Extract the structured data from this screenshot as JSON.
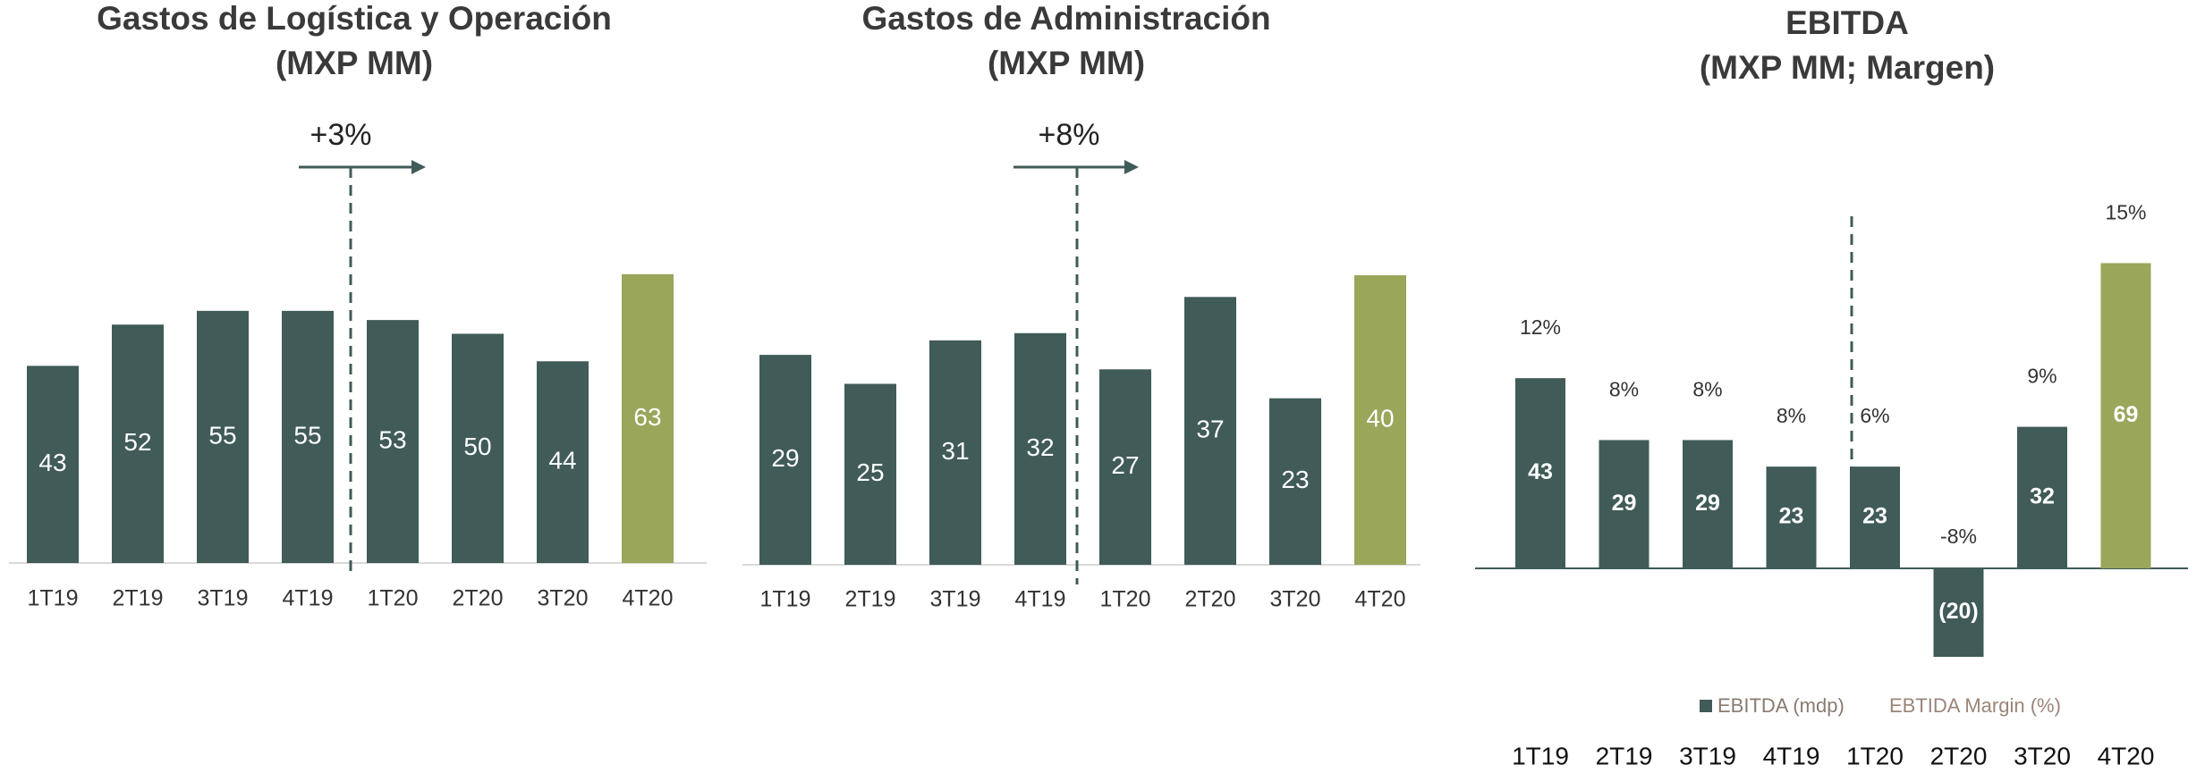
{
  "chart_data": [
    {
      "type": "bar",
      "title": "Gastos de Logística y Operación",
      "subtitle": "(MXP MM)",
      "annotation": "+3%",
      "categories": [
        "1T19",
        "2T19",
        "3T19",
        "4T19",
        "1T20",
        "2T20",
        "3T20",
        "4T20"
      ],
      "values": [
        43,
        52,
        55,
        55,
        53,
        50,
        44,
        63
      ],
      "colors": [
        "#405b58",
        "#405b58",
        "#405b58",
        "#405b58",
        "#405b58",
        "#405b58",
        "#405b58",
        "#9aa65a"
      ]
    },
    {
      "type": "bar",
      "title": "Gastos de Administración",
      "subtitle": "(MXP MM)",
      "annotation": "+8%",
      "categories": [
        "1T19",
        "2T19",
        "3T19",
        "4T19",
        "1T20",
        "2T20",
        "3T20",
        "4T20"
      ],
      "values": [
        29,
        25,
        31,
        32,
        27,
        37,
        23,
        40
      ],
      "colors": [
        "#405b58",
        "#405b58",
        "#405b58",
        "#405b58",
        "#405b58",
        "#405b58",
        "#405b58",
        "#9aa65a"
      ]
    },
    {
      "type": "bar",
      "title": "EBITDA",
      "subtitle": "(MXP MM; Margen)",
      "categories": [
        "1T19",
        "2T19",
        "3T19",
        "4T19",
        "1T20",
        "2T20",
        "3T20",
        "4T20"
      ],
      "series": [
        {
          "name": "EBITDA (mdp)",
          "color": "#405b58",
          "values": [
            43,
            29,
            29,
            23,
            23,
            -20,
            32,
            69
          ],
          "value_labels": [
            "43",
            "29",
            "29",
            "23",
            "23",
            "(20)",
            "32",
            "69"
          ],
          "colors": [
            "#405b58",
            "#405b58",
            "#405b58",
            "#405b58",
            "#405b58",
            "#405b58",
            "#405b58",
            "#9aa65a"
          ]
        },
        {
          "name": "EBTIDA Margin (%)",
          "color": "#9a8578",
          "values": [
            12,
            8,
            8,
            8,
            6,
            -8,
            9,
            15
          ],
          "value_labels": [
            "12%",
            "8%",
            "8%",
            "8%",
            "6%",
            "-8%",
            "9%",
            "15%"
          ]
        }
      ]
    }
  ]
}
